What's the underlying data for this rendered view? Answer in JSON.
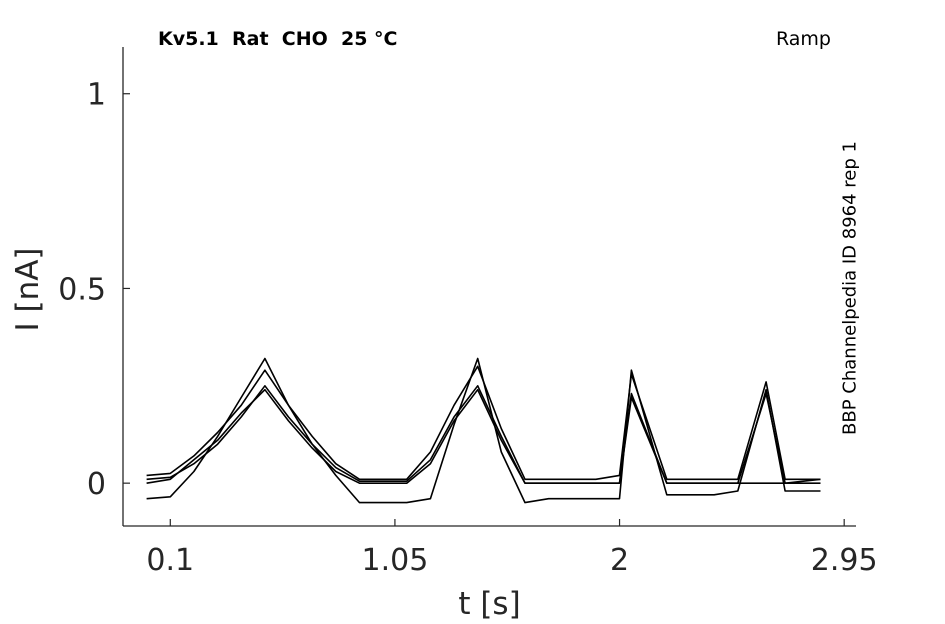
{
  "chart_data": {
    "type": "line",
    "title": "Kv5.1  Rat  CHO  25 °C",
    "protocol": "Ramp",
    "source": "BBP Channelpedia ID 8964 rep 1",
    "xlabel": "t [s]",
    "ylabel": "I [nA]",
    "xlim": [
      -0.1,
      3.0
    ],
    "ylim": [
      -0.11,
      1.12
    ],
    "xticks": [
      0.1,
      1.05,
      2,
      2.95
    ],
    "xtick_labels": [
      "0.1",
      "1.05",
      "2",
      "2.95"
    ],
    "yticks": [
      0,
      0.5,
      1
    ],
    "ytick_labels": [
      "0",
      "0.5",
      "1"
    ],
    "grid": false,
    "line_color": "#000000",
    "series": [
      {
        "x": [
          0.0,
          0.1,
          0.2,
          0.3,
          0.4,
          0.5,
          0.6,
          0.7,
          0.8,
          0.9,
          1.0,
          1.1,
          1.2,
          1.3,
          1.4,
          1.5,
          1.6,
          1.7,
          1.8,
          1.9,
          2.0,
          2.05,
          2.2,
          2.3,
          2.4,
          2.5,
          2.62,
          2.7,
          2.85
        ],
        "y": [
          0.01,
          0.015,
          0.05,
          0.1,
          0.17,
          0.25,
          0.17,
          0.1,
          0.04,
          0.005,
          0.005,
          0.005,
          0.06,
          0.17,
          0.25,
          0.12,
          0.0,
          0.0,
          0.0,
          0.0,
          0.0,
          0.22,
          0.0,
          0.0,
          0.0,
          0.0,
          0.0,
          0.0,
          0.0
        ]
      },
      {
        "x": [
          0.0,
          0.1,
          0.2,
          0.3,
          0.4,
          0.5,
          0.6,
          0.7,
          0.8,
          0.9,
          1.0,
          1.1,
          1.2,
          1.3,
          1.4,
          1.5,
          1.6,
          1.7,
          1.8,
          1.9,
          2.0,
          2.05,
          2.2,
          2.3,
          2.4,
          2.5,
          2.62,
          2.7,
          2.85
        ],
        "y": [
          0.02,
          0.025,
          0.07,
          0.13,
          0.2,
          0.29,
          0.2,
          0.12,
          0.05,
          0.01,
          0.01,
          0.01,
          0.08,
          0.2,
          0.3,
          0.14,
          0.01,
          0.01,
          0.01,
          0.01,
          0.02,
          0.28,
          0.01,
          0.01,
          0.01,
          0.01,
          0.26,
          0.01,
          0.01
        ]
      },
      {
        "x": [
          0.0,
          0.1,
          0.2,
          0.3,
          0.4,
          0.5,
          0.6,
          0.7,
          0.8,
          0.9,
          1.0,
          1.1,
          1.2,
          1.3,
          1.4,
          1.5,
          1.6,
          1.7,
          1.8,
          1.9,
          2.0,
          2.05,
          2.2,
          2.3,
          2.4,
          2.5,
          2.62,
          2.7,
          2.85
        ],
        "y": [
          -0.04,
          -0.035,
          0.03,
          0.12,
          0.22,
          0.32,
          0.2,
          0.1,
          0.02,
          -0.05,
          -0.05,
          -0.05,
          -0.04,
          0.15,
          0.32,
          0.08,
          -0.05,
          -0.04,
          -0.04,
          -0.04,
          -0.04,
          0.29,
          -0.03,
          -0.03,
          -0.03,
          -0.02,
          0.24,
          -0.02,
          -0.02
        ]
      },
      {
        "x": [
          0.0,
          0.1,
          0.2,
          0.3,
          0.4,
          0.5,
          0.6,
          0.7,
          0.8,
          0.9,
          1.0,
          1.1,
          1.2,
          1.3,
          1.4,
          1.5,
          1.6,
          1.7,
          1.8,
          1.9,
          2.0,
          2.05,
          2.2,
          2.3,
          2.4,
          2.5,
          2.62,
          2.7,
          2.85
        ],
        "y": [
          0.0,
          0.01,
          0.06,
          0.11,
          0.18,
          0.24,
          0.16,
          0.09,
          0.03,
          0.0,
          0.0,
          0.0,
          0.05,
          0.16,
          0.24,
          0.11,
          0.0,
          0.0,
          0.0,
          0.0,
          0.0,
          0.23,
          0.0,
          0.0,
          0.0,
          0.0,
          0.23,
          0.0,
          0.01
        ]
      }
    ]
  }
}
